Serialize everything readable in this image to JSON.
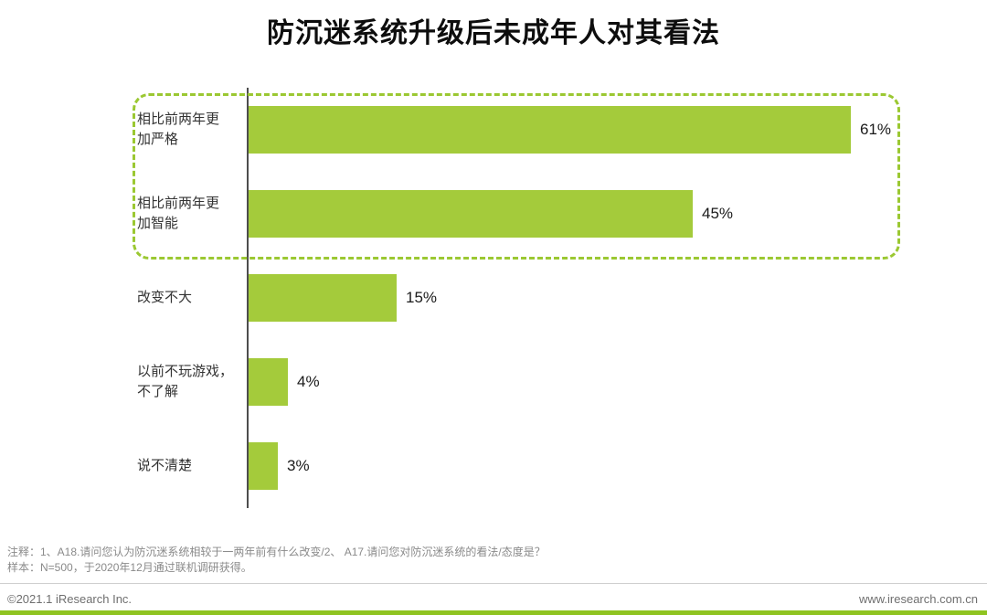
{
  "title": "防沉迷系统升级后未成年人对其看法",
  "chart_data": {
    "type": "bar",
    "orientation": "horizontal",
    "title": "防沉迷系统升级后未成年人对其看法",
    "categories": [
      "相比前两年更加严格",
      "相比前两年更加智能",
      "改变不大",
      "以前不玩游戏，不了解",
      "说不清楚"
    ],
    "category_lines": [
      [
        "相比前两年更",
        "加严格"
      ],
      [
        "相比前两年更",
        "加智能"
      ],
      [
        "改变不大"
      ],
      [
        "以前不玩游戏，",
        "不了解"
      ],
      [
        "说不清楚"
      ]
    ],
    "values": [
      61,
      45,
      15,
      4,
      3
    ],
    "value_labels": [
      "61%",
      "45%",
      "15%",
      "4%",
      "3%"
    ],
    "unit": "%",
    "xlim": [
      0,
      70
    ],
    "legend": "none",
    "grid": "off",
    "highlight": {
      "indices": [
        0,
        1
      ],
      "style": "dashed-rounded-box",
      "border_color": "#9bc832"
    }
  },
  "colors": {
    "bar": "#a4cb3b",
    "accent": "#9bc832",
    "bottom_bar": "#8fc421",
    "axis": "#4d4d4d"
  },
  "notes": {
    "line1": "注释：1、A18.请问您认为防沉迷系统相较于一两年前有什么改变/2、 A17.请问您对防沉迷系统的看法/态度是？",
    "line2": "样本：N=500，于2020年12月通过联机调研获得。"
  },
  "footer": {
    "copyright": "©2021.1 iResearch Inc.",
    "website": "www.iresearch.com.cn"
  }
}
